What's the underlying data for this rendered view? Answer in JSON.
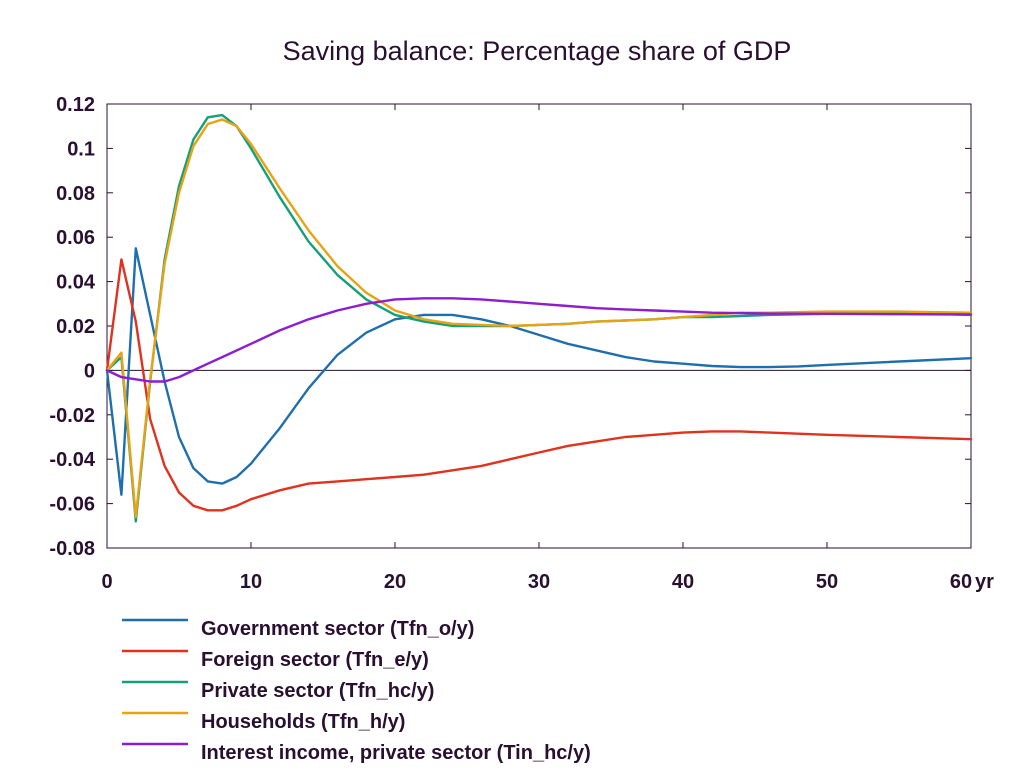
{
  "chart_data": {
    "type": "line",
    "title": "Saving balance: Percentage share of GDP",
    "xlabel": "",
    "ylabel": "",
    "x_unit_label": "yr",
    "xlim": [
      0,
      60
    ],
    "ylim": [
      -0.08,
      0.12
    ],
    "x_ticks": [
      "0",
      "10",
      "20",
      "30",
      "40",
      "50",
      "60"
    ],
    "y_ticks": [
      "0.12",
      "0.1",
      "0.08",
      "0.06",
      "0.04",
      "0.02",
      "0",
      "-0.02",
      "-0.04",
      "-0.06",
      "-0.08"
    ],
    "grid": false,
    "legend_position": "bottom-left",
    "series": [
      {
        "name": "Government sector (Tfn_o/y)",
        "color": "#1f6fae",
        "points": [
          [
            0,
            0
          ],
          [
            1,
            -0.056
          ],
          [
            2,
            0.055
          ],
          [
            3,
            0.025
          ],
          [
            4,
            -0.005
          ],
          [
            5,
            -0.03
          ],
          [
            6,
            -0.044
          ],
          [
            7,
            -0.05
          ],
          [
            8,
            -0.051
          ],
          [
            9,
            -0.048
          ],
          [
            10,
            -0.042
          ],
          [
            12,
            -0.026
          ],
          [
            14,
            -0.008
          ],
          [
            16,
            0.007
          ],
          [
            18,
            0.017
          ],
          [
            20,
            0.023
          ],
          [
            22,
            0.025
          ],
          [
            24,
            0.025
          ],
          [
            26,
            0.023
          ],
          [
            28,
            0.02
          ],
          [
            30,
            0.016
          ],
          [
            32,
            0.012
          ],
          [
            34,
            0.009
          ],
          [
            36,
            0.006
          ],
          [
            38,
            0.004
          ],
          [
            40,
            0.003
          ],
          [
            42,
            0.002
          ],
          [
            44,
            0.0015
          ],
          [
            46,
            0.0015
          ],
          [
            48,
            0.0018
          ],
          [
            50,
            0.0025
          ],
          [
            55,
            0.004
          ],
          [
            60,
            0.0055
          ]
        ]
      },
      {
        "name": "Foreign sector (Tfn_e/y)",
        "color": "#e0321e",
        "points": [
          [
            0,
            0
          ],
          [
            1,
            0.05
          ],
          [
            2,
            0.022
          ],
          [
            3,
            -0.022
          ],
          [
            4,
            -0.043
          ],
          [
            5,
            -0.055
          ],
          [
            6,
            -0.061
          ],
          [
            7,
            -0.063
          ],
          [
            8,
            -0.063
          ],
          [
            9,
            -0.061
          ],
          [
            10,
            -0.058
          ],
          [
            12,
            -0.054
          ],
          [
            14,
            -0.051
          ],
          [
            16,
            -0.05
          ],
          [
            18,
            -0.049
          ],
          [
            20,
            -0.048
          ],
          [
            22,
            -0.047
          ],
          [
            24,
            -0.045
          ],
          [
            26,
            -0.043
          ],
          [
            28,
            -0.04
          ],
          [
            30,
            -0.037
          ],
          [
            32,
            -0.034
          ],
          [
            34,
            -0.032
          ],
          [
            36,
            -0.03
          ],
          [
            38,
            -0.029
          ],
          [
            40,
            -0.028
          ],
          [
            42,
            -0.0275
          ],
          [
            44,
            -0.0275
          ],
          [
            46,
            -0.028
          ],
          [
            50,
            -0.029
          ],
          [
            55,
            -0.03
          ],
          [
            60,
            -0.031
          ]
        ]
      },
      {
        "name": "Private sector (Tfn_hc/y)",
        "color": "#14a07a",
        "points": [
          [
            0,
            0
          ],
          [
            1,
            0.006
          ],
          [
            2,
            -0.068
          ],
          [
            3,
            -0.005
          ],
          [
            4,
            0.05
          ],
          [
            5,
            0.083
          ],
          [
            6,
            0.104
          ],
          [
            7,
            0.114
          ],
          [
            8,
            0.115
          ],
          [
            9,
            0.11
          ],
          [
            10,
            0.1
          ],
          [
            12,
            0.078
          ],
          [
            14,
            0.058
          ],
          [
            16,
            0.043
          ],
          [
            18,
            0.032
          ],
          [
            20,
            0.025
          ],
          [
            22,
            0.022
          ],
          [
            24,
            0.02
          ],
          [
            26,
            0.02
          ],
          [
            28,
            0.02
          ],
          [
            30,
            0.0205
          ],
          [
            32,
            0.021
          ],
          [
            34,
            0.022
          ],
          [
            36,
            0.0225
          ],
          [
            38,
            0.023
          ],
          [
            40,
            0.024
          ],
          [
            42,
            0.024
          ],
          [
            44,
            0.0245
          ],
          [
            46,
            0.025
          ],
          [
            50,
            0.0255
          ],
          [
            55,
            0.026
          ],
          [
            60,
            0.025
          ]
        ]
      },
      {
        "name": "Households (Tfn_h/y)",
        "color": "#e8a314",
        "points": [
          [
            0,
            0
          ],
          [
            1,
            0.008
          ],
          [
            2,
            -0.066
          ],
          [
            3,
            -0.004
          ],
          [
            4,
            0.048
          ],
          [
            5,
            0.08
          ],
          [
            6,
            0.101
          ],
          [
            7,
            0.111
          ],
          [
            8,
            0.113
          ],
          [
            9,
            0.11
          ],
          [
            10,
            0.102
          ],
          [
            12,
            0.082
          ],
          [
            14,
            0.063
          ],
          [
            16,
            0.047
          ],
          [
            18,
            0.035
          ],
          [
            20,
            0.027
          ],
          [
            22,
            0.023
          ],
          [
            24,
            0.021
          ],
          [
            26,
            0.0205
          ],
          [
            28,
            0.02
          ],
          [
            30,
            0.0205
          ],
          [
            32,
            0.021
          ],
          [
            34,
            0.022
          ],
          [
            36,
            0.0225
          ],
          [
            38,
            0.023
          ],
          [
            40,
            0.024
          ],
          [
            42,
            0.025
          ],
          [
            44,
            0.026
          ],
          [
            46,
            0.026
          ],
          [
            50,
            0.0265
          ],
          [
            55,
            0.0265
          ],
          [
            60,
            0.026
          ]
        ]
      },
      {
        "name": "Interest income, private sector (Tin_hc/y)",
        "color": "#8a1ed0",
        "points": [
          [
            0,
            0
          ],
          [
            1,
            -0.003
          ],
          [
            2,
            -0.004
          ],
          [
            3,
            -0.005
          ],
          [
            4,
            -0.005
          ],
          [
            5,
            -0.003
          ],
          [
            6,
            0
          ],
          [
            7,
            0.003
          ],
          [
            8,
            0.006
          ],
          [
            10,
            0.012
          ],
          [
            12,
            0.018
          ],
          [
            14,
            0.023
          ],
          [
            16,
            0.027
          ],
          [
            18,
            0.03
          ],
          [
            20,
            0.032
          ],
          [
            22,
            0.0325
          ],
          [
            24,
            0.0325
          ],
          [
            26,
            0.032
          ],
          [
            28,
            0.031
          ],
          [
            30,
            0.03
          ],
          [
            32,
            0.029
          ],
          [
            34,
            0.028
          ],
          [
            36,
            0.0275
          ],
          [
            38,
            0.027
          ],
          [
            40,
            0.0265
          ],
          [
            42,
            0.026
          ],
          [
            44,
            0.0258
          ],
          [
            46,
            0.0256
          ],
          [
            50,
            0.0255
          ],
          [
            55,
            0.0253
          ],
          [
            60,
            0.0252
          ]
        ]
      }
    ]
  }
}
